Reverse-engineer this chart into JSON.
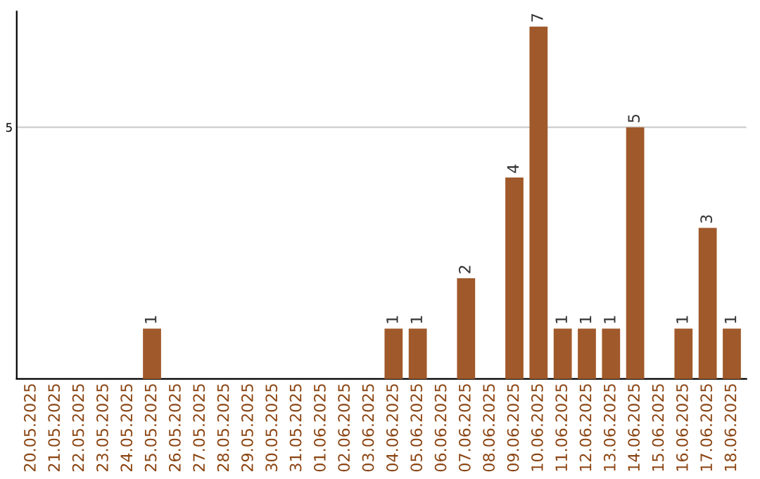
{
  "chart_data": {
    "type": "bar",
    "categories": [
      "20.05.2025",
      "21.05.2025",
      "22.05.2025",
      "23.05.2025",
      "24.05.2025",
      "25.05.2025",
      "26.05.2025",
      "27.05.2025",
      "28.05.2025",
      "29.05.2025",
      "30.05.2025",
      "31.05.2025",
      "01.06.2025",
      "02.06.2025",
      "03.06.2025",
      "04.06.2025",
      "05.06.2025",
      "06.06.2025",
      "07.06.2025",
      "08.06.2025",
      "09.06.2025",
      "10.06.2025",
      "11.06.2025",
      "12.06.2025",
      "13.06.2025",
      "14.06.2025",
      "15.06.2025",
      "16.06.2025",
      "17.06.2025",
      "18.06.2025"
    ],
    "values": [
      0,
      0,
      0,
      0,
      0,
      1,
      0,
      0,
      0,
      0,
      0,
      0,
      0,
      0,
      0,
      1,
      1,
      0,
      2,
      0,
      4,
      7,
      1,
      1,
      1,
      5,
      0,
      1,
      3,
      1
    ],
    "value_labels": [
      null,
      null,
      null,
      null,
      null,
      "1",
      null,
      null,
      null,
      null,
      null,
      null,
      null,
      null,
      null,
      "1",
      "1",
      null,
      "2",
      null,
      "4",
      "7",
      "1",
      "1",
      "1",
      "5",
      null,
      "1",
      "3",
      "1"
    ],
    "color": "#a0592a",
    "ylim": [
      0,
      7.3
    ],
    "yticks": [
      5
    ],
    "grid": "y",
    "legend": false
  }
}
